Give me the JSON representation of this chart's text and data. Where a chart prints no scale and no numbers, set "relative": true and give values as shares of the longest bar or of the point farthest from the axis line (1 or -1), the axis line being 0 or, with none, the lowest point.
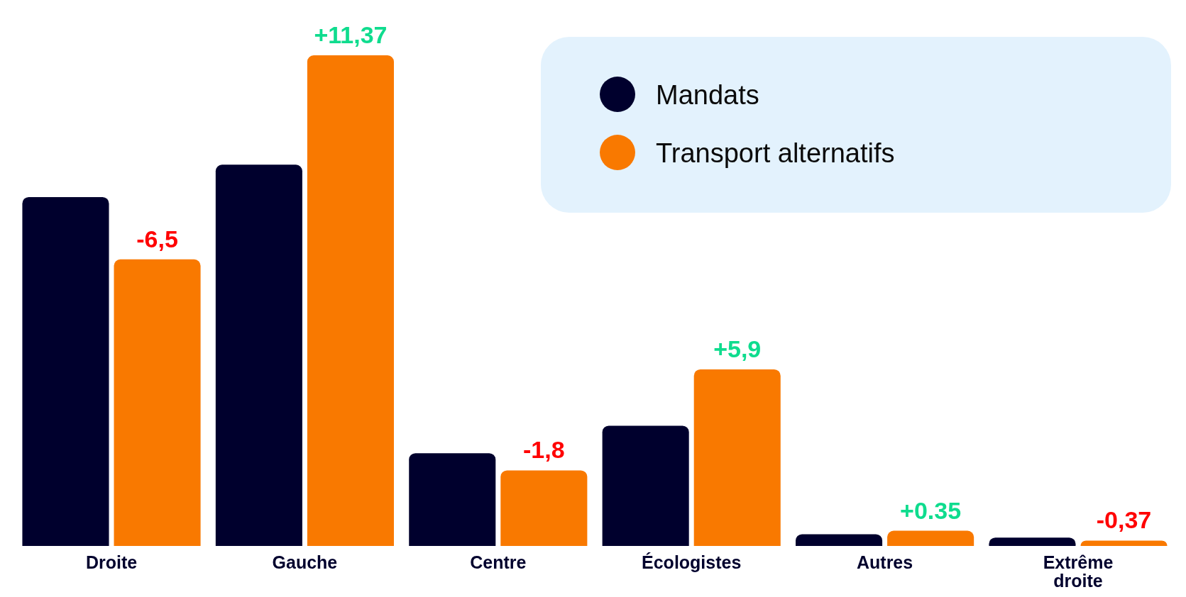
{
  "chart_data": {
    "type": "bar",
    "relative": true,
    "legend": "top right",
    "categories": [
      "Droite",
      "Gauche",
      "Centre",
      "Écologistes",
      "Autres",
      "Extrême droite"
    ],
    "series": [
      {
        "name": "Mandats",
        "color": "#00002d",
        "values": [
          0.711,
          0.777,
          0.189,
          0.245,
          0.024,
          0.017
        ]
      },
      {
        "name": "Transport alternatifs",
        "color": "#f97900",
        "values": [
          0.584,
          1,
          0.154,
          0.36,
          0.031,
          0.011
        ]
      }
    ],
    "annotations": [
      "-6,5",
      "+11,37",
      "-1,8",
      "+5,9",
      "+0.35",
      "-0,37"
    ]
  }
}
